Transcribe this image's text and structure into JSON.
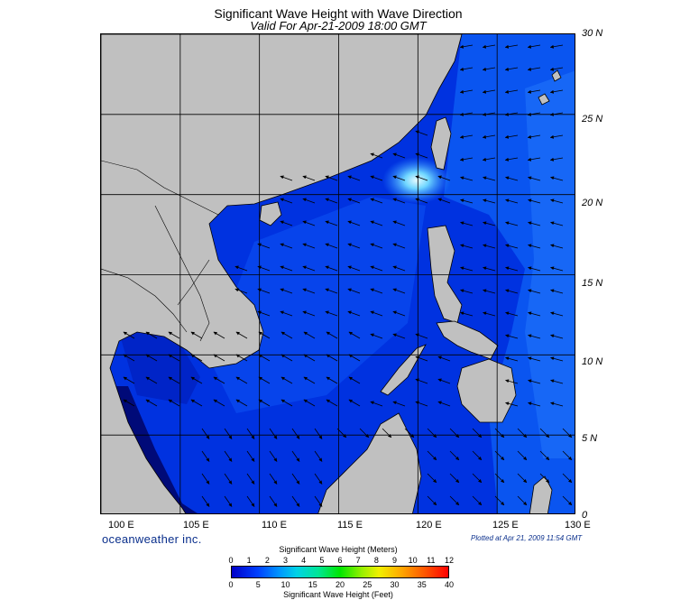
{
  "title": "Significant Wave Height with Wave Direction",
  "subtitle": "Valid For Apr-21-2009 18:00 GMT",
  "lat_labels": [
    "30 N",
    "25 N",
    "20 N",
    "15 N",
    "10 N",
    "5 N",
    "0"
  ],
  "lon_labels": [
    "100 E",
    "105 E",
    "110 E",
    "115 E",
    "120 E",
    "125 E",
    "130 E"
  ],
  "brand": "oceanweather inc.",
  "plotted_note": "Plotted at Apr 21, 2009 11:54 GMT",
  "colorbar": {
    "title_top": "Significant Wave Height (Meters)",
    "title_bottom": "Significant Wave Height (Feet)",
    "meters_ticks": [
      "0",
      "1",
      "2",
      "3",
      "4",
      "5",
      "6",
      "7",
      "8",
      "9",
      "10",
      "11",
      "12"
    ],
    "feet_ticks": [
      "0",
      "5",
      "10",
      "15",
      "20",
      "25",
      "30",
      "35",
      "40"
    ]
  },
  "colors": {
    "land": "#c0c0c0",
    "deep_sea": "#0018b4",
    "sea_blue": "#0032e0",
    "sea_mid": "#0a55f0",
    "sea_light": "#2a8cff",
    "hotspot": "#aef0ff"
  },
  "map_extent": {
    "lon_min": 100,
    "lon_max": 130,
    "lat_min": 0,
    "lat_max": 30
  }
}
